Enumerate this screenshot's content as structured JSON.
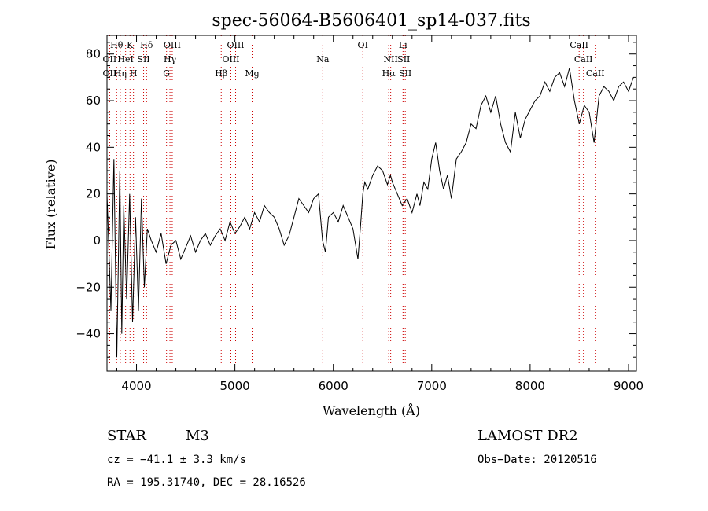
{
  "chart_data": {
    "type": "line",
    "title": "spec-56064-B5606401_sp14-037.fits",
    "xlabel": "Wavelength (Å)",
    "ylabel": "Flux (relative)",
    "xlim": [
      3700,
      9080
    ],
    "ylim": [
      -56,
      88
    ],
    "x_ticks": [
      4000,
      5000,
      6000,
      7000,
      8000,
      9000
    ],
    "y_ticks": [
      -40,
      -20,
      0,
      20,
      40,
      60,
      80
    ],
    "grid": false,
    "series": [
      {
        "x": [
          3700,
          3740,
          3770,
          3800,
          3830,
          3850,
          3870,
          3900,
          3930,
          3960,
          3990,
          4020,
          4050,
          4080,
          4110,
          4150,
          4200,
          4250,
          4300,
          4350,
          4400,
          4450,
          4500,
          4550,
          4600,
          4650,
          4700,
          4750,
          4800,
          4850,
          4900,
          4950,
          5000,
          5050,
          5100,
          5150,
          5200,
          5250,
          5300,
          5350,
          5400,
          5450,
          5500,
          5550,
          5600,
          5650,
          5700,
          5750,
          5800,
          5850,
          5890,
          5920,
          5950,
          6000,
          6050,
          6100,
          6150,
          6200,
          6250,
          6280,
          6300,
          6320,
          6350,
          6400,
          6450,
          6500,
          6550,
          6580,
          6600,
          6650,
          6700,
          6750,
          6800,
          6850,
          6880,
          6920,
          6960,
          7000,
          7040,
          7080,
          7120,
          7160,
          7200,
          7250,
          7300,
          7350,
          7400,
          7450,
          7500,
          7550,
          7600,
          7650,
          7700,
          7750,
          7800,
          7850,
          7900,
          7950,
          8000,
          8050,
          8100,
          8150,
          8200,
          8250,
          8300,
          8350,
          8400,
          8450,
          8500,
          8550,
          8600,
          8650,
          8700,
          8750,
          8800,
          8850,
          8900,
          8950,
          9000,
          9050
        ],
        "y": [
          20,
          -30,
          35,
          -50,
          30,
          -40,
          15,
          -25,
          20,
          -35,
          10,
          -30,
          18,
          -20,
          5,
          0,
          -5,
          3,
          -10,
          -2,
          0,
          -8,
          -3,
          2,
          -5,
          0,
          3,
          -2,
          2,
          5,
          0,
          8,
          3,
          6,
          10,
          5,
          12,
          8,
          15,
          12,
          10,
          5,
          -2,
          2,
          10,
          18,
          15,
          12,
          18,
          20,
          0,
          -5,
          10,
          12,
          8,
          15,
          10,
          5,
          -8,
          8,
          20,
          25,
          22,
          28,
          32,
          30,
          24,
          28,
          25,
          20,
          15,
          18,
          12,
          20,
          15,
          25,
          22,
          35,
          42,
          30,
          22,
          28,
          18,
          35,
          38,
          42,
          50,
          48,
          58,
          62,
          55,
          62,
          50,
          42,
          38,
          55,
          44,
          52,
          56,
          60,
          62,
          68,
          64,
          70,
          72,
          66,
          74,
          60,
          50,
          58,
          55,
          42,
          62,
          66,
          64,
          60,
          66,
          68,
          64,
          70
        ]
      }
    ],
    "spectral_lines": [
      {
        "name": "Hθ",
        "x": 3798,
        "row": 1
      },
      {
        "name": "K",
        "x": 3934,
        "row": 1
      },
      {
        "name": "Hδ",
        "x": 4102,
        "row": 1
      },
      {
        "name": "OIII",
        "x": 4363,
        "row": 1
      },
      {
        "name": "OIII",
        "x": 5007,
        "row": 1
      },
      {
        "name": "OI",
        "x": 6300,
        "row": 1
      },
      {
        "name": "Li",
        "x": 6708,
        "row": 1
      },
      {
        "name": "CaII",
        "x": 8498,
        "row": 1
      },
      {
        "name": "OII",
        "x": 3727,
        "row": 2
      },
      {
        "name": "HeI",
        "x": 3889,
        "row": 2
      },
      {
        "name": "SII",
        "x": 4072,
        "row": 2
      },
      {
        "name": "Hγ",
        "x": 4340,
        "row": 2
      },
      {
        "name": "OIII",
        "x": 4959,
        "row": 2
      },
      {
        "name": "Na",
        "x": 5893,
        "row": 2
      },
      {
        "name": "NII",
        "x": 6583,
        "row": 2
      },
      {
        "name": "SII",
        "x": 6716,
        "row": 2
      },
      {
        "name": "CaII",
        "x": 8542,
        "row": 2
      },
      {
        "name": "OII",
        "x": 3727,
        "row": 3
      },
      {
        "name": "Hη",
        "x": 3835,
        "row": 3
      },
      {
        "name": "H",
        "x": 3969,
        "row": 3
      },
      {
        "name": "G",
        "x": 4305,
        "row": 3
      },
      {
        "name": "Hβ",
        "x": 4861,
        "row": 3
      },
      {
        "name": "Mg",
        "x": 5175,
        "row": 3
      },
      {
        "name": "Hα",
        "x": 6563,
        "row": 3
      },
      {
        "name": "SII",
        "x": 6731,
        "row": 3
      },
      {
        "name": "CaII",
        "x": 8662,
        "row": 3
      }
    ]
  },
  "footer": {
    "object_class": "STAR",
    "subclass": "M3",
    "survey": "LAMOST DR2",
    "cz": "cz = −41.1 ± 3.3 km/s",
    "obs_date": "Obs−Date: 20120516",
    "coords": "RA = 195.31740, DEC =  28.16526"
  },
  "colors": {
    "spectrum": "#000000",
    "line_markers": "#cc0000",
    "background": "#ffffff"
  }
}
